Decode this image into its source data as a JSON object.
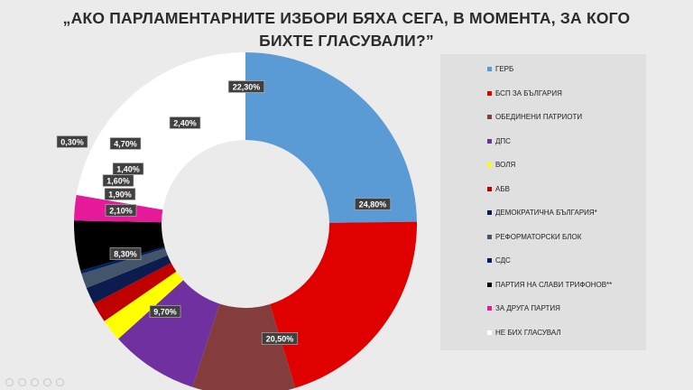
{
  "chart_data": {
    "type": "pie",
    "subtype": "donut",
    "title": "„АКО ПАРЛАМЕНТАРНИТЕ ИЗБОРИ БЯХА СЕГА, В МОМЕНТА, ЗА КОГО БИХТЕ ГЛАСУВАЛИ?”",
    "slices": [
      {
        "name": "ГЕРБ",
        "value": 24.8,
        "label": "24,80%",
        "color": "#5b9bd5"
      },
      {
        "name": "БСП ЗА БЪЛГАРИЯ",
        "value": 20.5,
        "label": "20,50%",
        "color": "#e00000"
      },
      {
        "name": "ОБЕДИНЕНИ ПАТРИОТИ",
        "value": 9.7,
        "label": "9,70%",
        "color": "#843c3c"
      },
      {
        "name": "ДПС",
        "value": 8.3,
        "label": "8,30%",
        "color": "#7030a0"
      },
      {
        "name": "ВОЛЯ",
        "value": 2.1,
        "label": "2,10%",
        "color": "#ffff00"
      },
      {
        "name": "АБВ",
        "value": 1.9,
        "label": "1,90%",
        "color": "#c00000"
      },
      {
        "name": "ДЕМОКРАТИЧНА БЪЛГАРИЯ*",
        "value": 1.6,
        "label": "1,60%",
        "color": "#0d1c4f"
      },
      {
        "name": "РЕФОРМАТОРСКИ БЛОК",
        "value": 1.4,
        "label": "1,40%",
        "color": "#44546a"
      },
      {
        "name": "СДС",
        "value": 0.3,
        "label": "0,30%",
        "color": "#002060"
      },
      {
        "name": "ПАРТИЯ НА СЛАВИ ТРИФОНОВ**",
        "value": 4.7,
        "label": "4,70%",
        "color": "#000000"
      },
      {
        "name": "ЗА ДРУГА ПАРТИЯ",
        "value": 2.4,
        "label": "2,40%",
        "color": "#e6199b"
      },
      {
        "name": "НЕ БИХ ГЛАСУВАЛ",
        "value": 22.3,
        "label": "22,30%",
        "color": "#ffffff"
      }
    ],
    "legend_position": "right"
  }
}
